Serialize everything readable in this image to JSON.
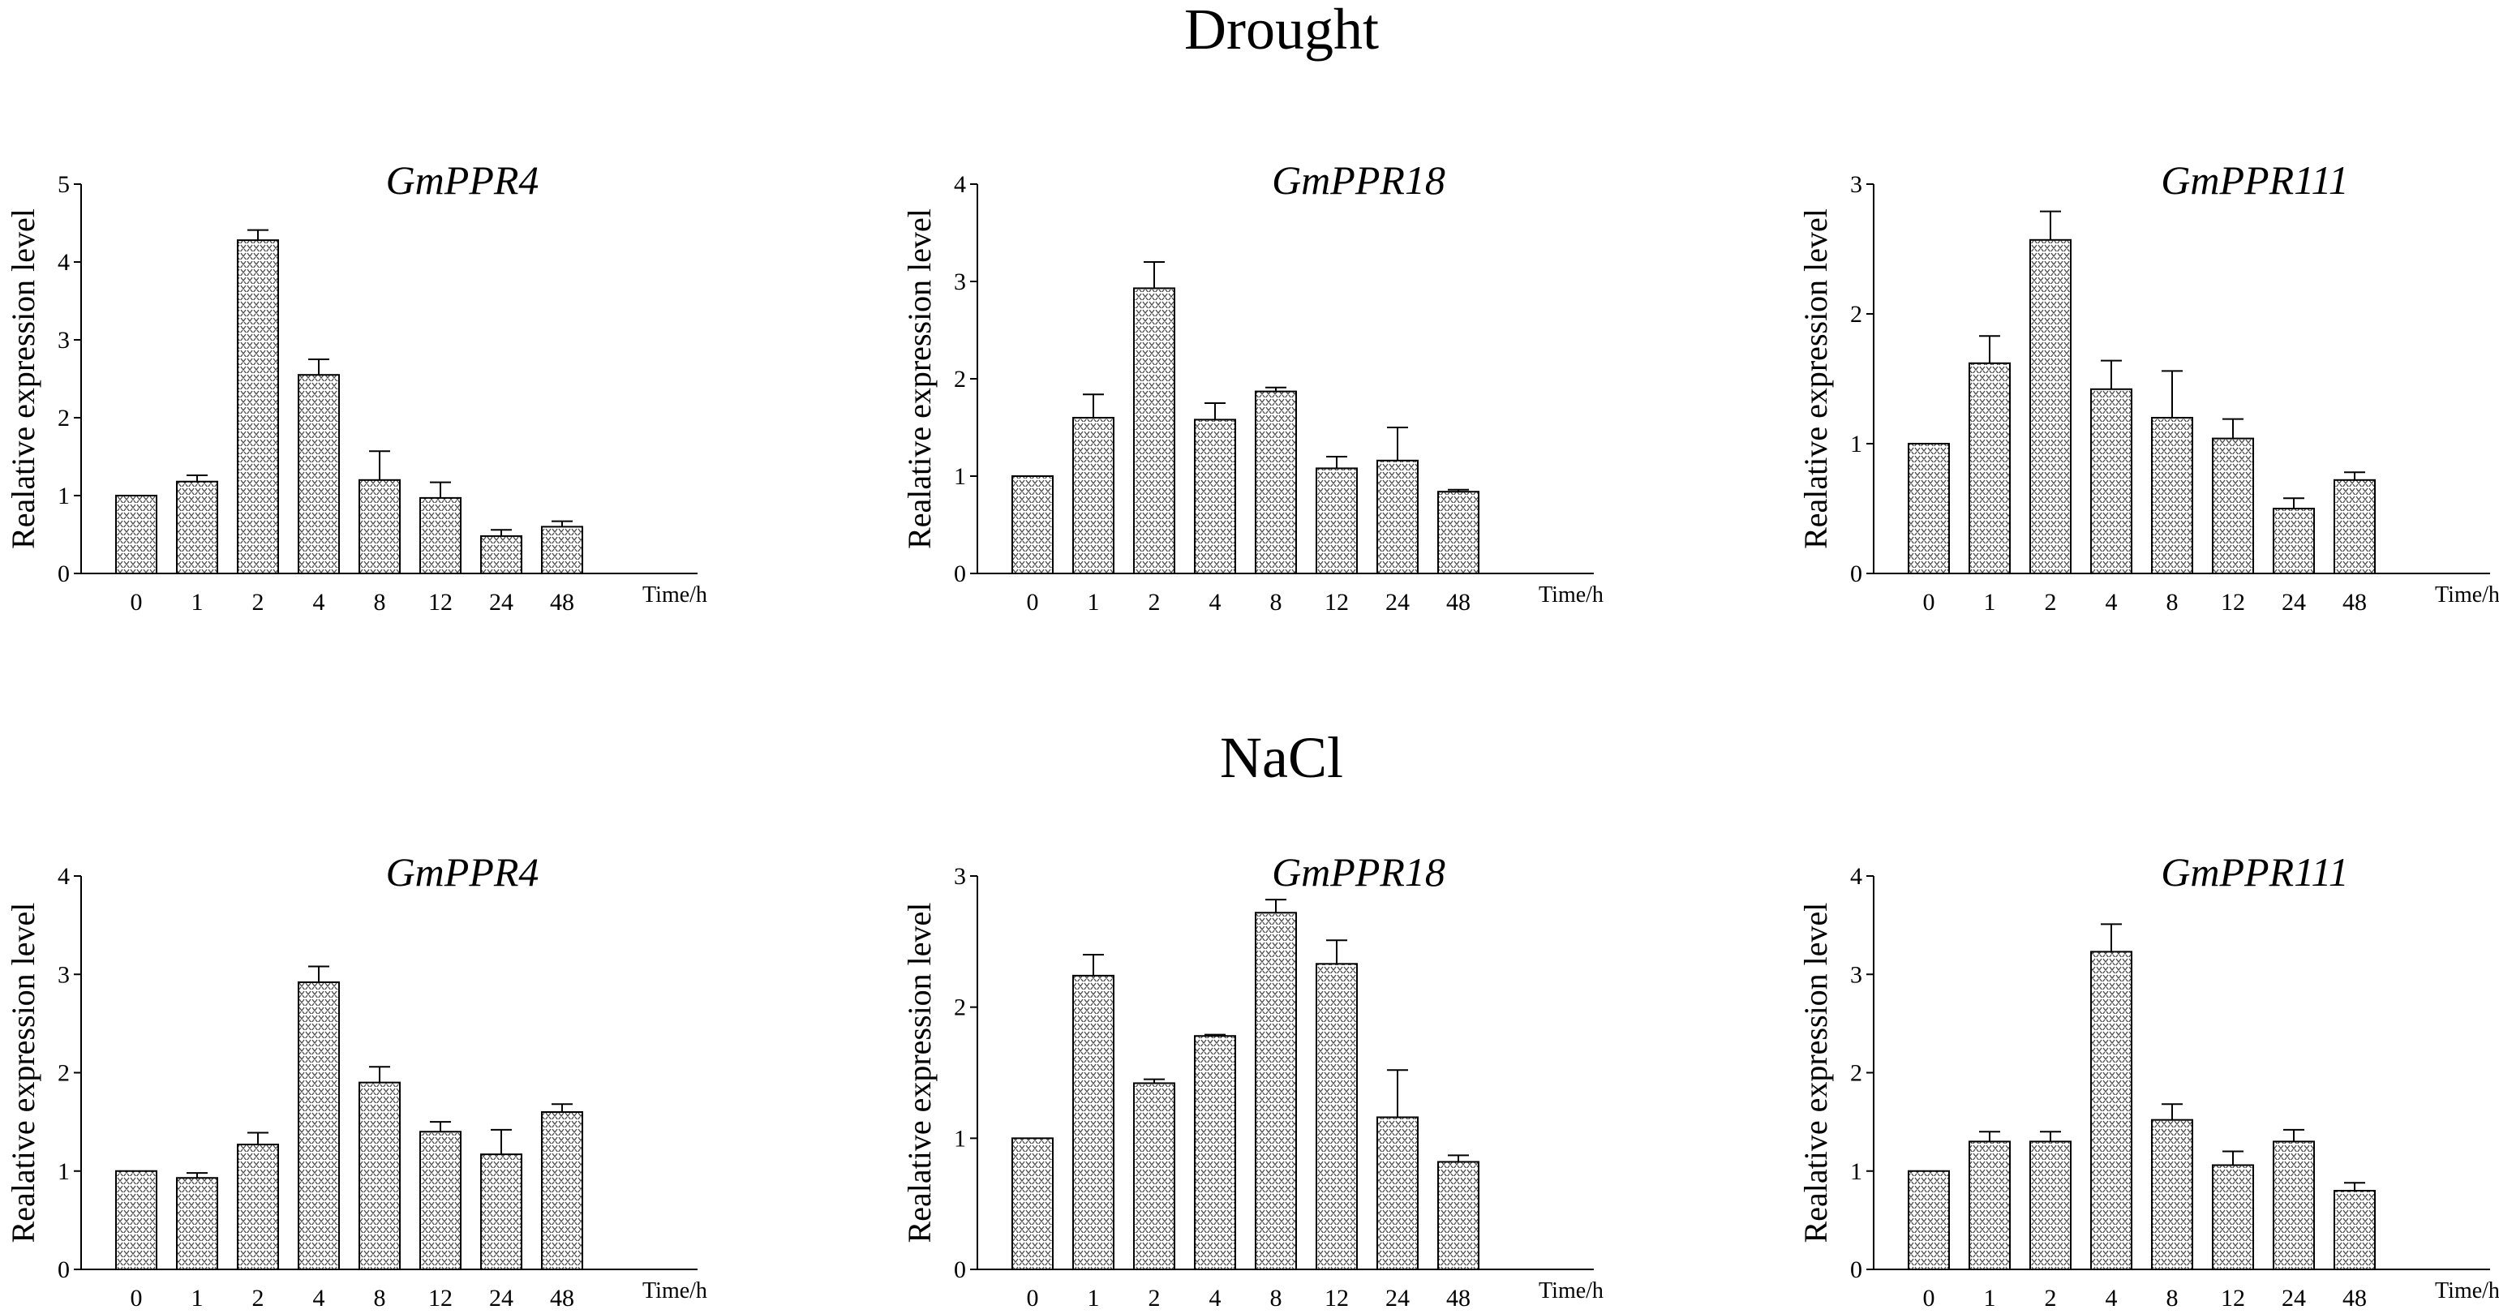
{
  "figure": {
    "sections": [
      {
        "title": "Drought"
      },
      {
        "title": "NaCl"
      }
    ]
  },
  "chart_data": [
    {
      "type": "bar",
      "section": "Drought",
      "title": "GmPPR4",
      "xlabel": "Time/h",
      "ylabel": "Realative expression level",
      "categories": [
        "0",
        "1",
        "2",
        "4",
        "8",
        "12",
        "24",
        "48"
      ],
      "values": [
        1.0,
        1.18,
        4.28,
        2.55,
        1.2,
        0.97,
        0.48,
        0.6
      ],
      "errors": [
        0,
        0.08,
        0.13,
        0.2,
        0.37,
        0.2,
        0.08,
        0.07
      ],
      "ylim": [
        0,
        5
      ],
      "yticks": [
        0,
        1,
        2,
        3,
        4,
        5
      ]
    },
    {
      "type": "bar",
      "section": "Drought",
      "title": "GmPPR18",
      "xlabel": "Time/h",
      "ylabel": "Realative expression level",
      "categories": [
        "0",
        "1",
        "2",
        "4",
        "8",
        "12",
        "24",
        "48"
      ],
      "values": [
        1.0,
        1.6,
        2.93,
        1.58,
        1.87,
        1.08,
        1.16,
        0.84
      ],
      "errors": [
        0,
        0.24,
        0.27,
        0.17,
        0.04,
        0.12,
        0.34,
        0.02
      ],
      "ylim": [
        0,
        4
      ],
      "yticks": [
        0,
        1,
        2,
        3,
        4
      ]
    },
    {
      "type": "bar",
      "section": "Drought",
      "title": "GmPPR111",
      "xlabel": "Time/h",
      "ylabel": "Realative expression level",
      "categories": [
        "0",
        "1",
        "2",
        "4",
        "8",
        "12",
        "24",
        "48"
      ],
      "values": [
        1.0,
        1.62,
        2.57,
        1.42,
        1.2,
        1.04,
        0.5,
        0.72
      ],
      "errors": [
        0,
        0.21,
        0.22,
        0.22,
        0.36,
        0.15,
        0.08,
        0.06
      ],
      "ylim": [
        0,
        3
      ],
      "yticks": [
        0,
        1,
        2,
        3
      ]
    },
    {
      "type": "bar",
      "section": "NaCl",
      "title": "GmPPR4",
      "xlabel": "Time/h",
      "ylabel": "Realative expression level",
      "categories": [
        "0",
        "1",
        "2",
        "4",
        "8",
        "12",
        "24",
        "48"
      ],
      "values": [
        1.0,
        0.93,
        1.27,
        2.92,
        1.9,
        1.4,
        1.17,
        1.6
      ],
      "errors": [
        0,
        0.05,
        0.12,
        0.16,
        0.16,
        0.1,
        0.25,
        0.08
      ],
      "ylim": [
        0,
        4
      ],
      "yticks": [
        0,
        1,
        2,
        3,
        4
      ]
    },
    {
      "type": "bar",
      "section": "NaCl",
      "title": "GmPPR18",
      "xlabel": "Time/h",
      "ylabel": "Realative expression level",
      "categories": [
        "0",
        "1",
        "2",
        "4",
        "8",
        "12",
        "24",
        "48"
      ],
      "values": [
        1.0,
        2.24,
        1.42,
        1.78,
        2.72,
        2.33,
        1.16,
        0.82
      ],
      "errors": [
        0,
        0.16,
        0.03,
        0.01,
        0.1,
        0.18,
        0.36,
        0.05
      ],
      "ylim": [
        0,
        3
      ],
      "yticks": [
        0,
        1,
        2,
        3
      ]
    },
    {
      "type": "bar",
      "section": "NaCl",
      "title": "GmPPR111",
      "xlabel": "Time/h",
      "ylabel": "Realative expression level",
      "categories": [
        "0",
        "1",
        "2",
        "4",
        "8",
        "12",
        "24",
        "48"
      ],
      "values": [
        1.0,
        1.3,
        1.3,
        3.23,
        1.52,
        1.06,
        1.3,
        0.8
      ],
      "errors": [
        0,
        0.1,
        0.1,
        0.28,
        0.16,
        0.14,
        0.12,
        0.08
      ],
      "ylim": [
        0,
        4
      ],
      "yticks": [
        0,
        1,
        2,
        3,
        4
      ]
    }
  ]
}
